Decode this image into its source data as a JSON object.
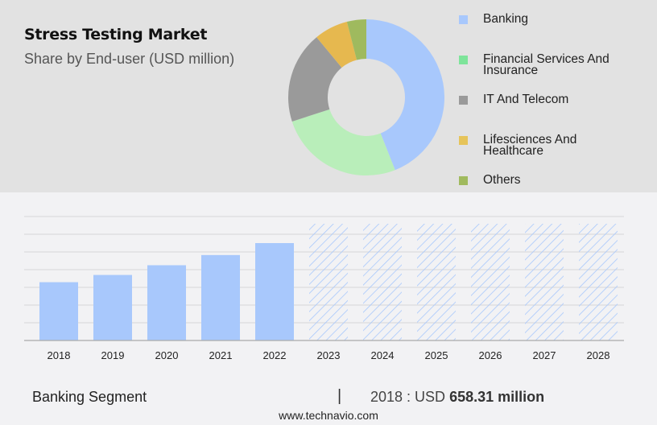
{
  "header": {
    "title": "Stress Testing Market",
    "subtitle": "Share by End-user (USD million)"
  },
  "legend": [
    {
      "label": "Banking",
      "color": "#a8c8fc"
    },
    {
      "label": "Financial Services And Insurance",
      "color": "#7ee49a"
    },
    {
      "label": "IT And Telecom",
      "color": "#9a9a9a"
    },
    {
      "label": "Lifesciences And Healthcare",
      "color": "#e6c45a"
    },
    {
      "label": "Others",
      "color": "#a0ba5e"
    }
  ],
  "footer": {
    "segment": "Banking Segment",
    "separator": "|",
    "year_prefix": "2018 : USD ",
    "value": "658.31 million",
    "url": "www.technavio.com"
  },
  "chart_data": [
    {
      "type": "pie",
      "title": "Stress Testing Market",
      "subtitle": "Share by End-user (USD million)",
      "donut": true,
      "categories": [
        "Banking",
        "Financial Services And Insurance",
        "IT And Telecom",
        "Lifesciences And Healthcare",
        "Others"
      ],
      "values": [
        44,
        26,
        19,
        7,
        4
      ],
      "colors": [
        "#a8c8fc",
        "#b9eeba",
        "#9a9a9a",
        "#e6b84f",
        "#9fba5e"
      ],
      "legend_position": "right"
    },
    {
      "type": "bar",
      "title": "Banking Segment",
      "categories": [
        "2018",
        "2019",
        "2020",
        "2021",
        "2022",
        "2023",
        "2024",
        "2025",
        "2026",
        "2027",
        "2028"
      ],
      "values": [
        658.31,
        740,
        850,
        965,
        1100,
        null,
        null,
        null,
        null,
        null,
        null
      ],
      "forecast_placeholder": [
        false,
        false,
        false,
        false,
        false,
        true,
        true,
        true,
        true,
        true,
        true
      ],
      "xlabel": "",
      "ylabel": "",
      "grid": true,
      "annotation": "2018 : USD 658.31 million",
      "bar_color": "#a8c8fc"
    }
  ]
}
